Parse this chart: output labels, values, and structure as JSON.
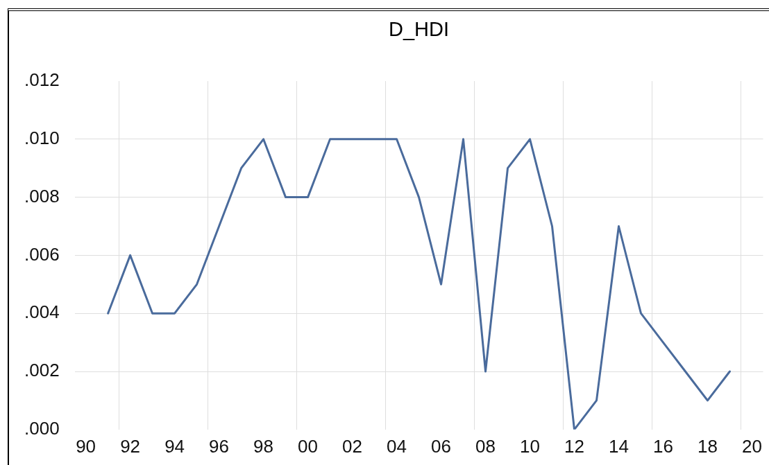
{
  "chart_data": {
    "type": "line",
    "title": "D_HDI",
    "color": "#4a6b9c",
    "marker": "none",
    "grid": true,
    "x": [
      1991,
      1992,
      1993,
      1994,
      1995,
      1996,
      1997,
      1998,
      1999,
      2000,
      2001,
      2002,
      2003,
      2004,
      2005,
      2006,
      2007,
      2008,
      2009,
      2010,
      2011,
      2012,
      2013,
      2014,
      2015,
      2016,
      2017,
      2018,
      2019
    ],
    "values": [
      0.004,
      0.006,
      0.004,
      0.004,
      0.005,
      0.007,
      0.009,
      0.01,
      0.008,
      0.008,
      0.01,
      0.01,
      0.01,
      0.01,
      0.008,
      0.005,
      0.01,
      0.002,
      0.009,
      0.01,
      0.007,
      0.0,
      0.001,
      0.007,
      0.004,
      0.003,
      0.002,
      0.001,
      0.002
    ],
    "xlim": [
      1989.5,
      2020.5
    ],
    "xticks": [
      {
        "value": 1990,
        "label": "90"
      },
      {
        "value": 1991.5,
        "label": null
      },
      {
        "value": 1992,
        "label": "92"
      },
      {
        "value": 1994,
        "label": "94"
      },
      {
        "value": 1995.5,
        "label": null
      },
      {
        "value": 1996,
        "label": "96"
      },
      {
        "value": 1998,
        "label": "98"
      },
      {
        "value": 1999.5,
        "label": null
      },
      {
        "value": 2000,
        "label": "00"
      },
      {
        "value": 2002,
        "label": "02"
      },
      {
        "value": 2003.5,
        "label": null
      },
      {
        "value": 2004,
        "label": "04"
      },
      {
        "value": 2006,
        "label": "06"
      },
      {
        "value": 2007.5,
        "label": null
      },
      {
        "value": 2008,
        "label": "08"
      },
      {
        "value": 2010,
        "label": "10"
      },
      {
        "value": 2011.5,
        "label": null
      },
      {
        "value": 2012,
        "label": "12"
      },
      {
        "value": 2014,
        "label": "14"
      },
      {
        "value": 2015.5,
        "label": null
      },
      {
        "value": 2016,
        "label": "16"
      },
      {
        "value": 2018,
        "label": "18"
      },
      {
        "value": 2019.5,
        "label": null
      },
      {
        "value": 2020,
        "label": "20"
      }
    ],
    "ylim": [
      0,
      0.012
    ],
    "yticks": [
      {
        "value": 0,
        "label": ".000"
      },
      {
        "value": 0.002,
        "label": ".002"
      },
      {
        "value": 0.004,
        "label": ".004"
      },
      {
        "value": 0.006,
        "label": ".006"
      },
      {
        "value": 0.008,
        "label": ".008"
      },
      {
        "value": 0.01,
        "label": ".010"
      },
      {
        "value": 0.012,
        "label": ".012"
      }
    ]
  }
}
